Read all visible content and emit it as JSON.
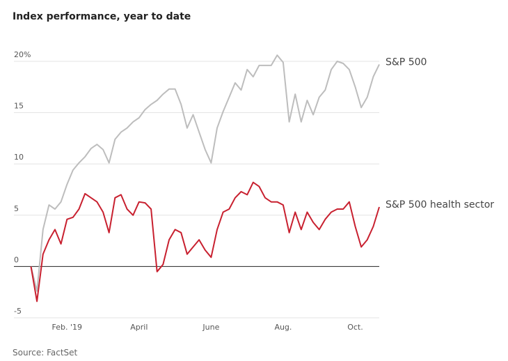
{
  "chart_data": {
    "type": "line",
    "title": "Index performance, year to date",
    "source": "Source: FactSet",
    "categories": [
      null,
      null,
      null,
      null,
      null,
      null,
      "Feb. '19",
      null,
      null,
      null,
      null,
      null,
      null,
      null,
      null,
      null,
      null,
      null,
      "April",
      null,
      null,
      null,
      null,
      null,
      null,
      null,
      null,
      null,
      null,
      null,
      "June",
      null,
      null,
      null,
      null,
      null,
      null,
      null,
      null,
      null,
      null,
      null,
      "Aug.",
      null,
      null,
      null,
      null,
      null,
      null,
      null,
      null,
      null,
      null,
      null,
      "Oct.",
      null,
      null,
      null,
      null
    ],
    "series": [
      {
        "name": "S&P 500",
        "color": "#bdbdbd",
        "values": [
          0,
          -2.4,
          3.6,
          6.0,
          5.6,
          6.3,
          8.0,
          9.4,
          10.1,
          10.7,
          11.5,
          11.9,
          11.4,
          10.1,
          12.4,
          13.1,
          13.5,
          14.1,
          14.5,
          15.3,
          15.8,
          16.2,
          16.8,
          17.3,
          17.3,
          15.8,
          13.5,
          14.8,
          13.1,
          11.4,
          10.1,
          13.5,
          15.1,
          16.5,
          17.9,
          17.2,
          19.2,
          18.5,
          19.6,
          19.6,
          19.6,
          20.6,
          19.9,
          14.1,
          16.8,
          14.1,
          16.2,
          14.8,
          16.5,
          17.2,
          19.2,
          20.0,
          19.8,
          19.2,
          17.5,
          15.5,
          16.5,
          18.5,
          19.7
        ]
      },
      {
        "name": "S&P 500 health sector",
        "color": "#c8202f",
        "values": [
          0,
          -3.4,
          1.2,
          2.6,
          3.6,
          2.2,
          4.6,
          4.8,
          5.6,
          7.1,
          6.7,
          6.3,
          5.3,
          3.3,
          6.7,
          7.0,
          5.6,
          5.0,
          6.3,
          6.2,
          5.6,
          -0.5,
          0.2,
          2.6,
          3.6,
          3.3,
          1.2,
          1.9,
          2.6,
          1.6,
          0.9,
          3.6,
          5.3,
          5.6,
          6.7,
          7.3,
          7.0,
          8.2,
          7.8,
          6.7,
          6.3,
          6.3,
          6.0,
          3.3,
          5.3,
          3.6,
          5.3,
          4.3,
          3.6,
          4.6,
          5.3,
          5.6,
          5.6,
          6.3,
          3.9,
          1.9,
          2.6,
          3.9,
          5.8
        ]
      }
    ],
    "ylim": [
      -5,
      21
    ],
    "yticks": [
      {
        "value": 20,
        "label": "20%"
      },
      15,
      10,
      5,
      0,
      -5
    ],
    "grid": true
  }
}
